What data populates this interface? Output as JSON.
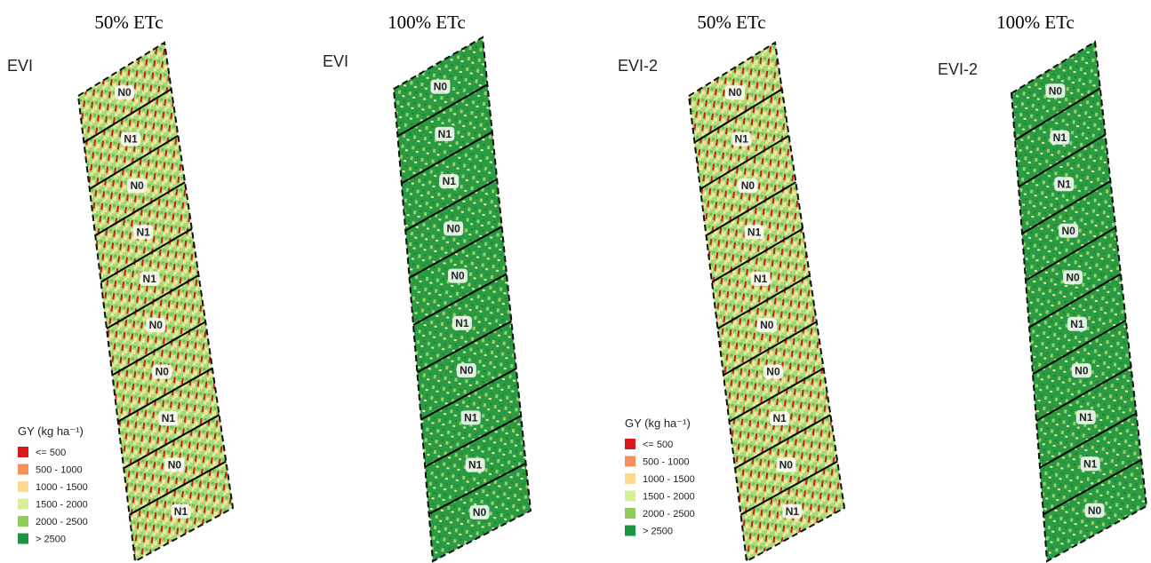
{
  "panels": [
    {
      "title": "50% ETc",
      "index": "EVI",
      "plots": [
        "N0",
        "N1",
        "N0",
        "N1",
        "N1",
        "N0",
        "N0",
        "N1",
        "N0",
        "N1"
      ]
    },
    {
      "title": "100% ETc",
      "index": "EVI",
      "plots": [
        "N0",
        "N1",
        "N1",
        "N0",
        "N0",
        "N1",
        "N0",
        "N1",
        "N1",
        "N0"
      ]
    },
    {
      "title": "50% ETc",
      "index": "EVI-2",
      "plots": [
        "N0",
        "N1",
        "N0",
        "N1",
        "N1",
        "N0",
        "N0",
        "N1",
        "N0",
        "N1"
      ]
    },
    {
      "title": "100% ETc",
      "index": "EVI-2",
      "plots": [
        "N0",
        "N1",
        "N1",
        "N0",
        "N0",
        "N1",
        "N0",
        "N1",
        "N1",
        "N0"
      ]
    }
  ],
  "legends": [
    {
      "title": "GY (kg ha⁻¹)",
      "items": [
        {
          "label": "<= 500",
          "color": "#d7191c"
        },
        {
          "label": "500 - 1000",
          "color": "#f4905a"
        },
        {
          "label": "1000 - 1500",
          "color": "#fbd98f"
        },
        {
          "label": "1500 - 2000",
          "color": "#d6ef9c"
        },
        {
          "label": "2000 - 2500",
          "color": "#8fcc5c"
        },
        {
          "label": "> 2500",
          "color": "#1a9641"
        }
      ]
    },
    {
      "title": "GY (kg ha⁻¹)",
      "items": [
        {
          "label": "<= 500",
          "color": "#d7191c"
        },
        {
          "label": "500 - 1000",
          "color": "#f4905a"
        },
        {
          "label": "1000 - 1500",
          "color": "#fbd98f"
        },
        {
          "label": "1500 - 2000",
          "color": "#d6ef9c"
        },
        {
          "label": "2000 - 2500",
          "color": "#8fcc5c"
        },
        {
          "label": "> 2500",
          "color": "#1a9641"
        }
      ]
    }
  ]
}
